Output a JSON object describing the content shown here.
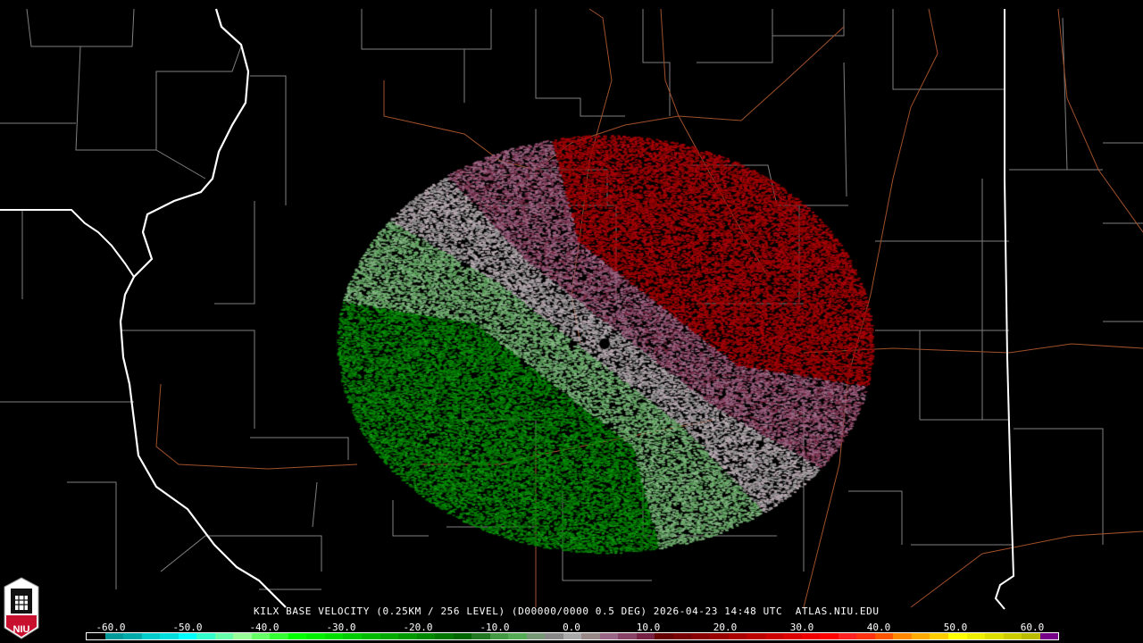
{
  "header": {
    "title": "KILX BASE VELOCITY (0.25KM / 256 LEVEL) (D00000/0000 0.5 DEG) 2026-04-23 14:48 UTC  ATLAS.NIU.EDU"
  },
  "logo": {
    "text": "NIU",
    "brand_color": "#c8102e"
  },
  "legend": {
    "ticks": [
      "-60.0",
      "-50.0",
      "-40.0",
      "-30.0",
      "-20.0",
      "-10.0",
      "0.0",
      "10.0",
      "20.0",
      "30.0",
      "40.0",
      "50.0",
      "60.0"
    ],
    "tick_values": [
      -60,
      -50,
      -40,
      -30,
      -20,
      -10,
      0,
      10,
      20,
      30,
      40,
      50,
      60
    ],
    "colors": [
      "#000000",
      "#009999",
      "#00aaaa",
      "#00cccc",
      "#00dddd",
      "#00ffff",
      "#33ffcc",
      "#66ffaa",
      "#99ff99",
      "#66ff66",
      "#33ff33",
      "#00ff00",
      "#00ee00",
      "#00dd00",
      "#00cc00",
      "#00bb00",
      "#00aa00",
      "#009900",
      "#008800",
      "#007700",
      "#006600",
      "#227722",
      "#449944",
      "#55aa55",
      "#779977",
      "#888888",
      "#aaaaaa",
      "#998888",
      "#996688",
      "#884466",
      "#772244",
      "#660000",
      "#770000",
      "#880000",
      "#990000",
      "#aa0000",
      "#bb0000",
      "#cc0000",
      "#dd0000",
      "#ee0000",
      "#ff0000",
      "#ff2222",
      "#ff3311",
      "#ff5500",
      "#ff8800",
      "#ffaa00",
      "#ffcc00",
      "#ffff00",
      "#eeee00",
      "#dddd00",
      "#cccc00",
      "#bbbb00",
      "#770088"
    ]
  },
  "map": {
    "radar_site": "KILX",
    "state_border_color": "#ffffff",
    "county_color": "#808080",
    "highway_color": "#a0502a"
  }
}
